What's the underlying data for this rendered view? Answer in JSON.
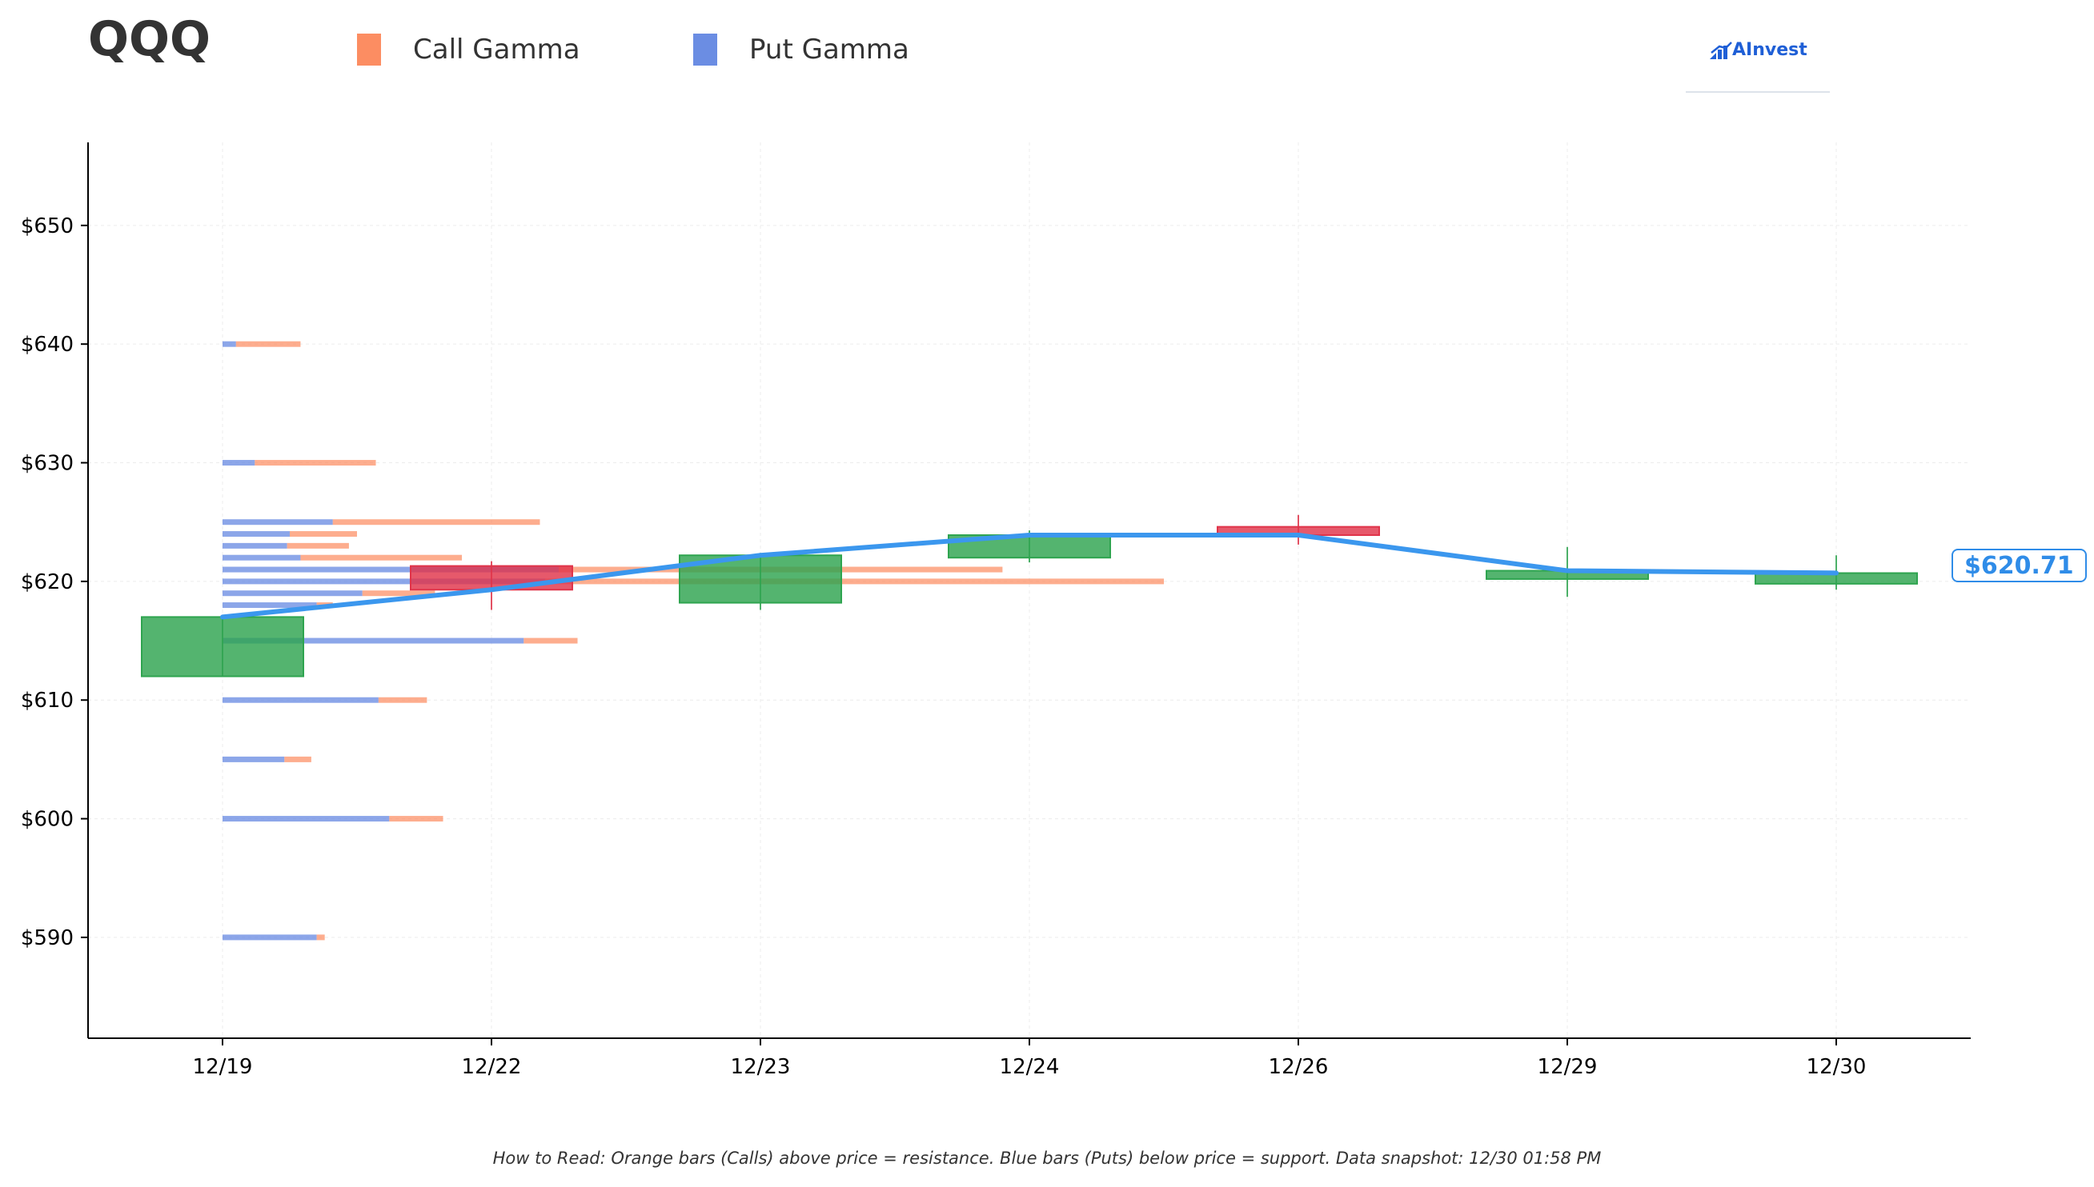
{
  "ticker": "QQQ",
  "legend": [
    {
      "label": "Call Gamma",
      "color": "#fc8d62"
    },
    {
      "label": "Put Gamma",
      "color": "#6b8de3"
    }
  ],
  "logo_text": "AInvest",
  "current_price_label": "$620.71",
  "footnote": "How to Read: Orange bars (Calls) above price = resistance. Blue bars (Puts) below price = support. Data snapshot: 12/30 01:58 PM",
  "chart_data": {
    "type": "candlestick",
    "categories": [
      "12/19",
      "12/22",
      "12/23",
      "12/24",
      "12/26",
      "12/29",
      "12/30"
    ],
    "y_ticks": [
      590,
      600,
      610,
      620,
      630,
      640,
      650
    ],
    "y_tick_labels": [
      "$590",
      "$600",
      "$610",
      "$620",
      "$630",
      "$640",
      "$650"
    ],
    "ylim": [
      581.5,
      657
    ],
    "candles": [
      {
        "date": "12/19",
        "open": 612.0,
        "close": 617.0,
        "high": 617.0,
        "low": 612.0
      },
      {
        "date": "12/22",
        "open": 621.3,
        "close": 619.3,
        "high": 621.7,
        "low": 617.6
      },
      {
        "date": "12/23",
        "open": 618.2,
        "close": 622.2,
        "high": 622.4,
        "low": 617.6
      },
      {
        "date": "12/24",
        "open": 622.0,
        "close": 623.9,
        "high": 624.3,
        "low": 621.6
      },
      {
        "date": "12/26",
        "open": 624.6,
        "close": 623.9,
        "high": 625.6,
        "low": 623.1
      },
      {
        "date": "12/29",
        "open": 620.2,
        "close": 620.9,
        "high": 622.9,
        "low": 618.7
      },
      {
        "date": "12/30",
        "open": 619.8,
        "close": 620.7,
        "high": 622.2,
        "low": 619.3
      }
    ],
    "close_line": [
      617.0,
      619.3,
      622.2,
      623.9,
      623.9,
      620.9,
      620.71
    ],
    "gamma_profile": {
      "strikes": [
        590,
        600,
        605,
        610,
        615,
        618,
        619,
        620,
        621,
        622,
        623,
        624,
        625,
        630,
        640
      ],
      "put_gamma": [
        0.35,
        0.62,
        0.23,
        0.58,
        1.12,
        0.35,
        0.52,
        1.2,
        1.25,
        0.29,
        0.24,
        0.25,
        0.41,
        0.12,
        0.05
      ],
      "call_gamma": [
        0.03,
        0.2,
        0.1,
        0.18,
        0.2,
        0.06,
        0.27,
        2.3,
        1.65,
        0.6,
        0.23,
        0.25,
        0.77,
        0.45,
        0.24
      ]
    },
    "grid": true,
    "legend_position": "top-left"
  }
}
